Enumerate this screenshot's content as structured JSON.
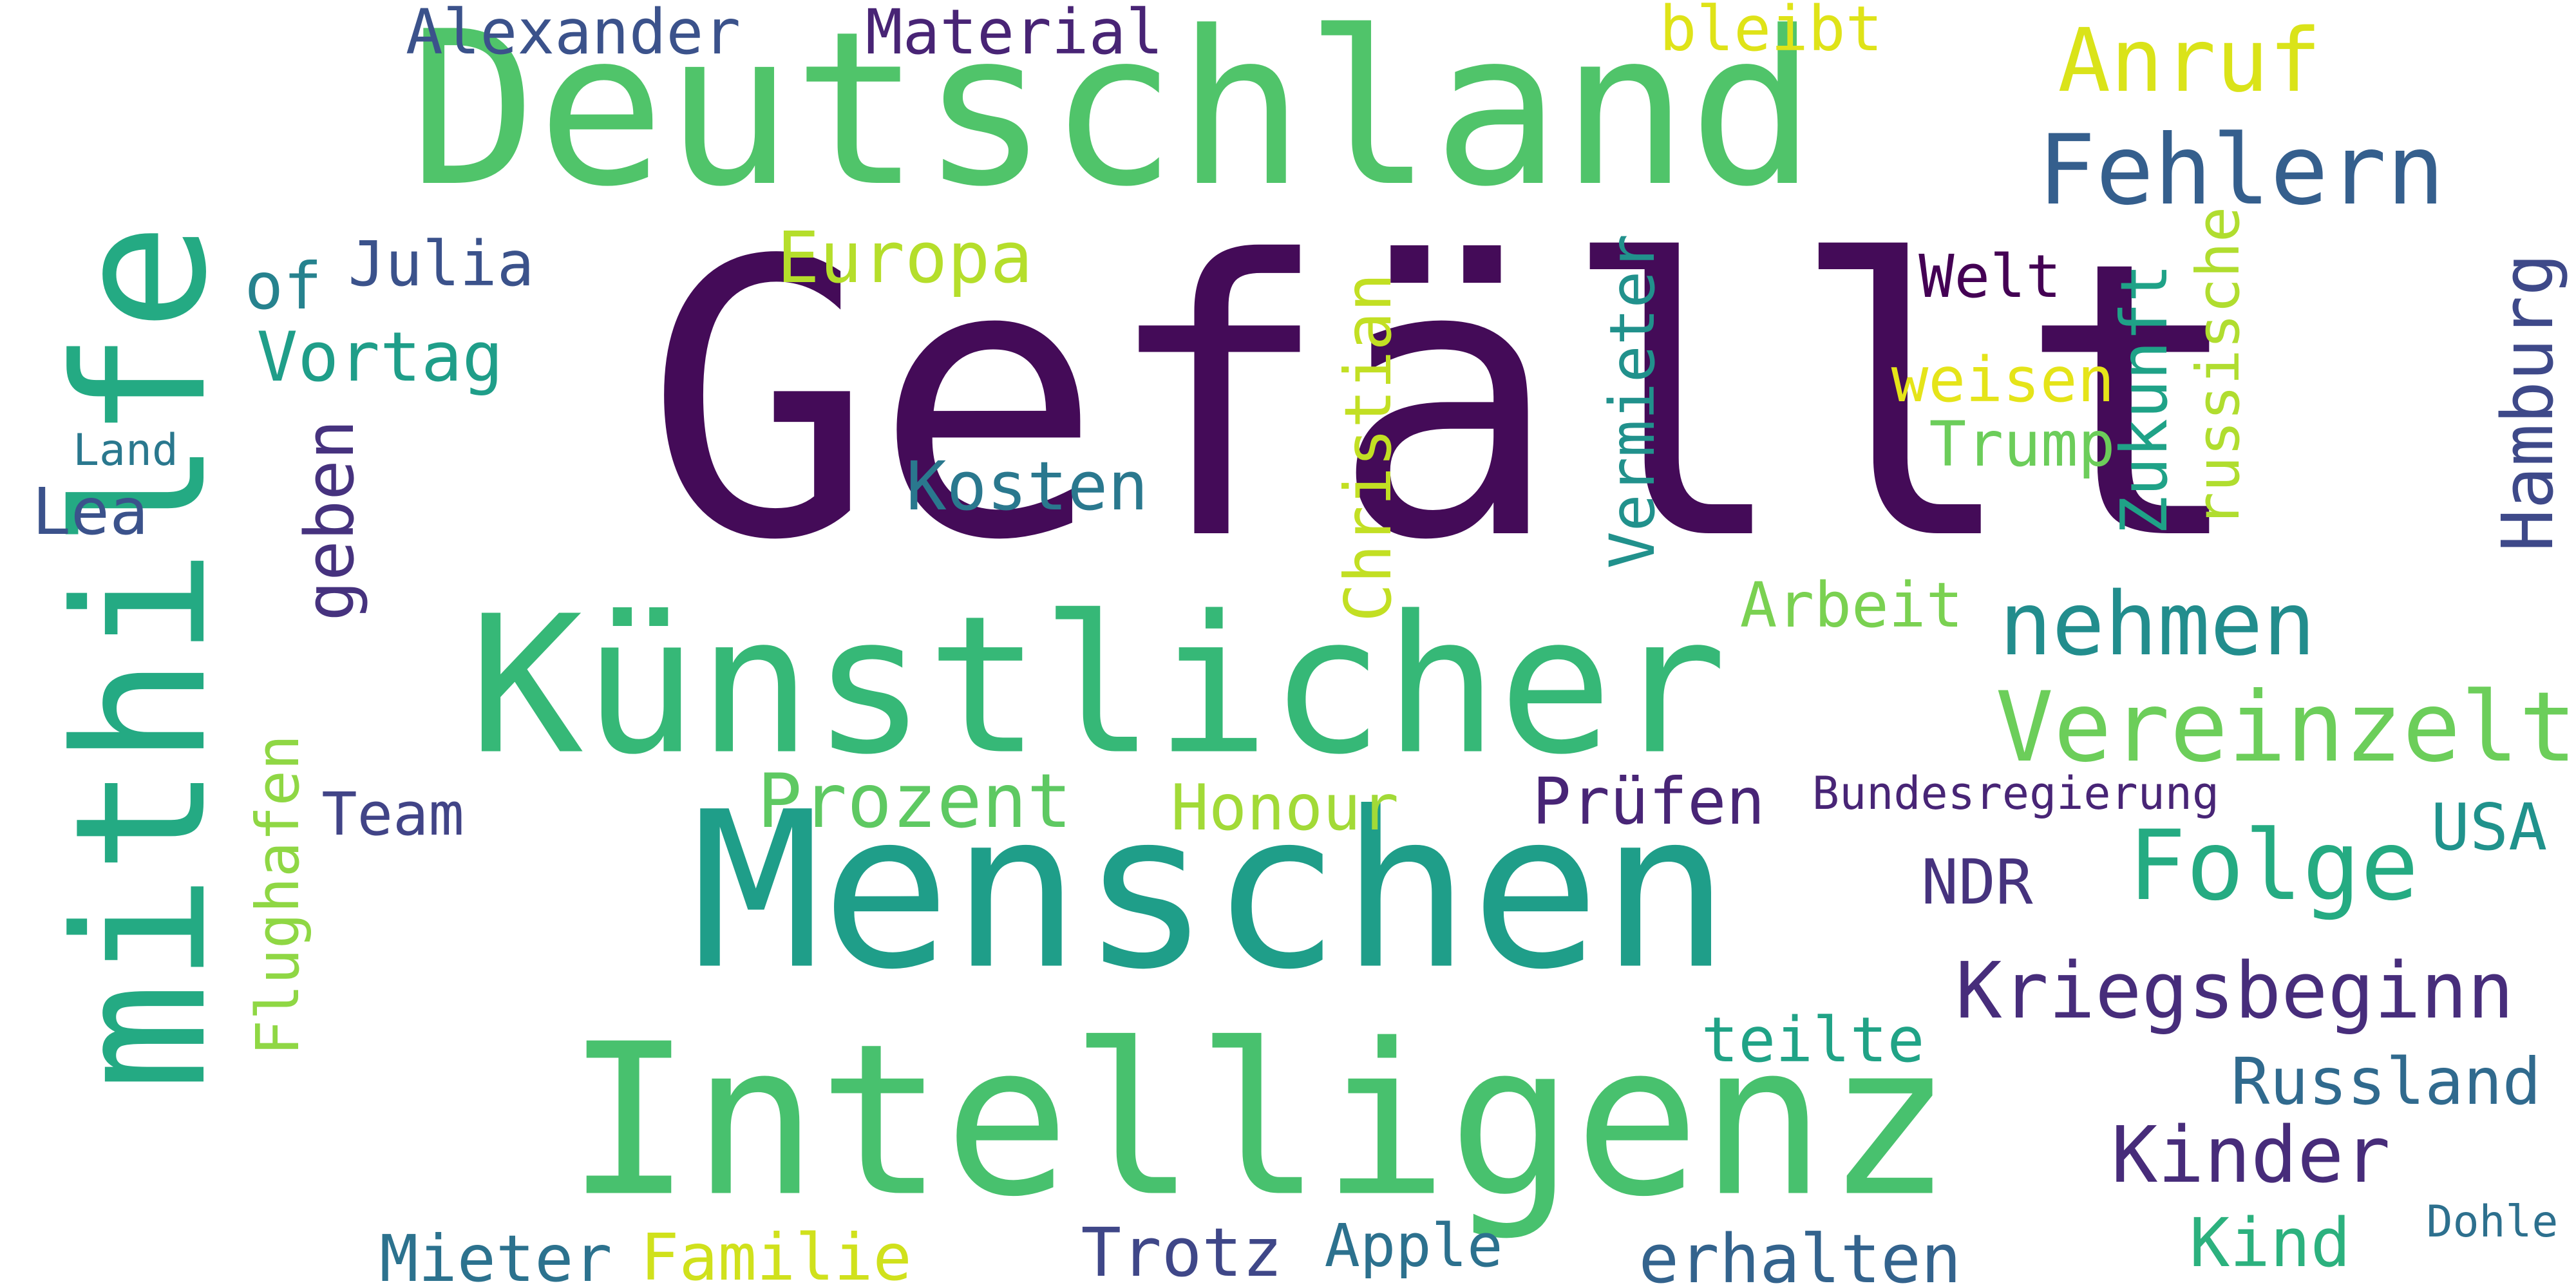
{
  "words": [
    {
      "text": "Gefällt",
      "color": "#440b58"
    },
    {
      "text": "Deutschland",
      "color": "#50c46a"
    },
    {
      "text": "mithilfe",
      "color": "#24aa83"
    },
    {
      "text": "Künstlicher",
      "color": "#36b877"
    },
    {
      "text": "Menschen",
      "color": "#1f9e89"
    },
    {
      "text": "Intelligenz",
      "color": "#48c16e"
    },
    {
      "text": "Vereinzelt",
      "color": "#6cce5a"
    },
    {
      "text": "Fehlern",
      "color": "#355f8d"
    },
    {
      "text": "Anruf",
      "color": "#dae319"
    },
    {
      "text": "Alexander",
      "color": "#3b528b"
    },
    {
      "text": "Material",
      "color": "#482475"
    },
    {
      "text": "bleibt",
      "color": "#dfe318"
    },
    {
      "text": "Julia",
      "color": "#3b528b"
    },
    {
      "text": "of",
      "color": "#26828e"
    },
    {
      "text": "Europa",
      "color": "#b5de2b"
    },
    {
      "text": "Vortag",
      "color": "#1f9e89"
    },
    {
      "text": "Land",
      "color": "#2a788e"
    },
    {
      "text": "Lea",
      "color": "#3b528b"
    },
    {
      "text": "geben",
      "color": "#46327e"
    },
    {
      "text": "Kosten",
      "color": "#2a788e"
    },
    {
      "text": "Christian",
      "color": "#c2df23"
    },
    {
      "text": "Vermieter",
      "color": "#21918c"
    },
    {
      "text": "Welt",
      "color": "#440154"
    },
    {
      "text": "weisen",
      "color": "#e5e419"
    },
    {
      "text": "Trump",
      "color": "#6ccd5a"
    },
    {
      "text": "Zukunft",
      "color": "#1fa287"
    },
    {
      "text": "russische",
      "color": "#b0dd2f"
    },
    {
      "text": "Hamburg",
      "color": "#3e4989"
    },
    {
      "text": "Arbeit",
      "color": "#7ad151"
    },
    {
      "text": "nehmen",
      "color": "#228d8d"
    },
    {
      "text": "Flughafen",
      "color": "#8fd744"
    },
    {
      "text": "Team",
      "color": "#414487"
    },
    {
      "text": "Prozent",
      "color": "#5ec962"
    },
    {
      "text": "Honour",
      "color": "#a2da37"
    },
    {
      "text": "Prüfen",
      "color": "#482576"
    },
    {
      "text": "Bundesregierung",
      "color": "#482576"
    },
    {
      "text": "USA",
      "color": "#20928c"
    },
    {
      "text": "Folge",
      "color": "#25ab82"
    },
    {
      "text": "NDR",
      "color": "#46337e"
    },
    {
      "text": "Kriegsbeginn",
      "color": "#472d7b"
    },
    {
      "text": "teilte",
      "color": "#20a386"
    },
    {
      "text": "Russland",
      "color": "#306a8e"
    },
    {
      "text": "Kinder",
      "color": "#472c7a"
    },
    {
      "text": "Mieter",
      "color": "#2c728e"
    },
    {
      "text": "Familie",
      "color": "#d0e11c"
    },
    {
      "text": "Trotz",
      "color": "#3f4788"
    },
    {
      "text": "Apple",
      "color": "#2c718e"
    },
    {
      "text": "erhalten",
      "color": "#33638d"
    },
    {
      "text": "Kind",
      "color": "#2cb17e"
    },
    {
      "text": "Dohle",
      "color": "#2d708e"
    }
  ]
}
